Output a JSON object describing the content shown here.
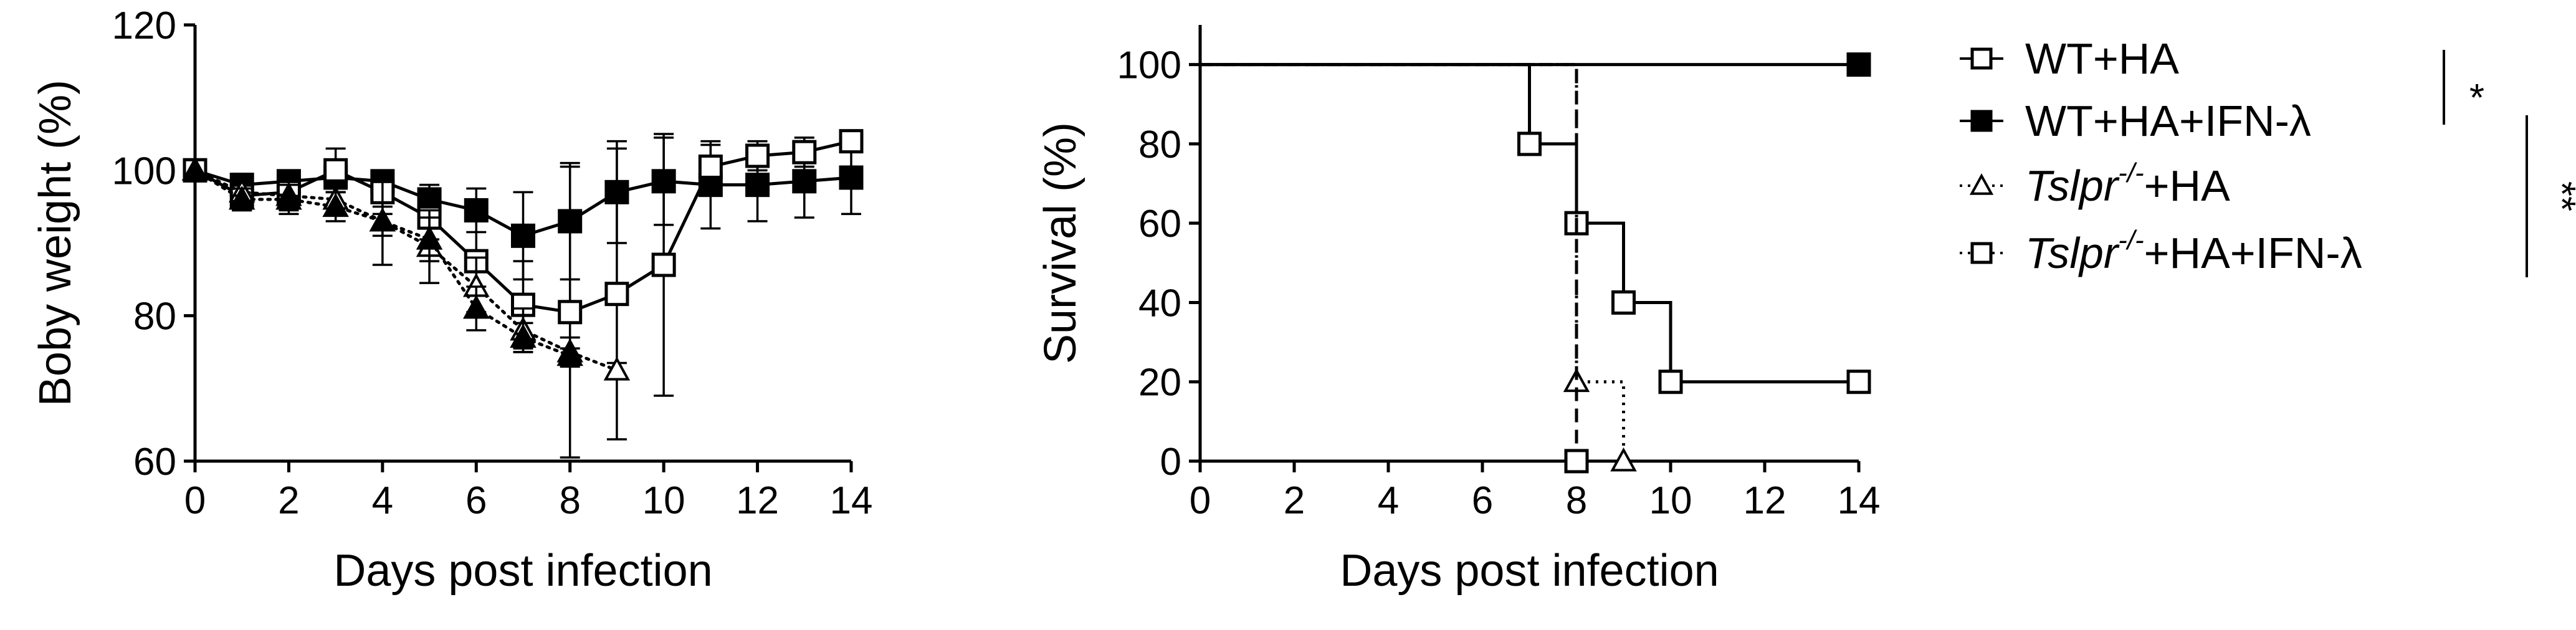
{
  "chart_data": [
    {
      "type": "line",
      "xlabel": "Days post infection",
      "ylabel": "Boby weight (%)",
      "xlim": [
        0,
        14
      ],
      "ylim": [
        60,
        120
      ],
      "xticks": [
        "0",
        "2",
        "4",
        "6",
        "8",
        "10",
        "12",
        "14"
      ],
      "yticks": [
        "60",
        "80",
        "100",
        "120"
      ],
      "grid": false,
      "error_bars": true,
      "series": [
        {
          "name": "WT+HA+IFN-λ",
          "marker": "square-filled",
          "line": "solid",
          "x": [
            0,
            1,
            2,
            3,
            4,
            5,
            6,
            7,
            8,
            9,
            10,
            11,
            12,
            13,
            14
          ],
          "y": [
            100,
            98,
            98.5,
            99,
            98.5,
            96,
            94.5,
            91,
            93,
            97,
            98.5,
            98,
            98,
            98.5,
            99
          ],
          "err": [
            0,
            1.5,
            1.5,
            2,
            1.5,
            2,
            3,
            6,
            8,
            7,
            6,
            6,
            5,
            5,
            5
          ]
        },
        {
          "name": "WT+HA",
          "marker": "square-open",
          "line": "solid",
          "x": [
            0,
            1,
            2,
            3,
            4,
            5,
            6,
            7,
            8,
            9,
            10,
            11,
            12,
            13,
            14
          ],
          "y": [
            100,
            96.5,
            97,
            100,
            97,
            93.5,
            87.5,
            81.5,
            80.5,
            83,
            87,
            100.5,
            102,
            102.5,
            104
          ],
          "err": [
            0,
            2,
            2,
            3,
            3,
            3,
            7,
            6,
            20,
            20,
            18,
            3,
            2,
            2,
            1
          ]
        },
        {
          "name": "Tslpr-/-+HA",
          "marker": "triangle-open",
          "line": "dotted",
          "x": [
            0,
            1,
            2,
            3,
            4,
            5,
            6,
            7,
            8,
            9
          ],
          "y": [
            100,
            97,
            96.5,
            96,
            93,
            89.5,
            84,
            78,
            75,
            72.5
          ],
          "err": [
            0,
            1.5,
            2,
            2,
            6,
            5,
            4,
            3,
            2,
            1
          ]
        },
        {
          "name": "Tslpr-/-+HA+IFN-λ",
          "marker": "triangle-filled",
          "line": "dotted",
          "x": [
            0,
            1,
            2,
            3,
            4,
            5,
            6,
            7,
            8
          ],
          "y": [
            100,
            96,
            96,
            95,
            93,
            90.5,
            81,
            77,
            74.5
          ],
          "err": [
            0,
            1.5,
            2,
            2,
            2,
            3,
            3,
            2,
            1
          ]
        }
      ]
    },
    {
      "type": "line",
      "step": true,
      "xlabel": "Days post infection",
      "ylabel": "Survival (%)",
      "xlim": [
        0,
        14
      ],
      "ylim": [
        0,
        110
      ],
      "xticks": [
        "0",
        "2",
        "4",
        "6",
        "8",
        "10",
        "12",
        "14"
      ],
      "yticks": [
        "0",
        "20",
        "40",
        "60",
        "80",
        "100"
      ],
      "grid": false,
      "series": [
        {
          "name": "WT+HA+IFN-λ",
          "marker": "square-filled",
          "line": "solid",
          "x": [
            0,
            14
          ],
          "y": [
            100,
            100
          ],
          "marker_points": [
            [
              14,
              100
            ]
          ]
        },
        {
          "name": "WT+HA",
          "marker": "square-open",
          "line": "solid",
          "x": [
            0,
            7,
            8,
            9,
            10,
            14
          ],
          "y": [
            100,
            80,
            60,
            40,
            20,
            20
          ],
          "marker_points": [
            [
              7,
              80
            ],
            [
              8,
              60
            ],
            [
              9,
              40
            ],
            [
              10,
              20
            ],
            [
              14,
              20
            ]
          ]
        },
        {
          "name": "Tslpr-/-+HA",
          "marker": "triangle-open",
          "line": "dotted",
          "x": [
            0,
            8,
            9
          ],
          "y": [
            100,
            20,
            0
          ],
          "marker_points": [
            [
              8,
              20
            ],
            [
              9,
              0
            ]
          ]
        },
        {
          "name": "Tslpr-/-+HA+IFN-λ",
          "marker": "square-open",
          "line": "dashed",
          "x": [
            0,
            8
          ],
          "y": [
            100,
            0
          ],
          "marker_points": [
            [
              8,
              0
            ]
          ]
        }
      ]
    }
  ],
  "legend": {
    "placement": "right",
    "entries": [
      {
        "marker": "square-open",
        "line": "solid",
        "pre": "WT+HA",
        "sup": "",
        "post": ""
      },
      {
        "marker": "square-filled",
        "line": "solid",
        "pre": "WT+HA+IFN-λ",
        "sup": "",
        "post": ""
      },
      {
        "marker": "triangle-open",
        "line": "dotted",
        "pre": "Tslpr",
        "sup": "-/-",
        "post": "+HA"
      },
      {
        "marker": "square-open",
        "line": "dotted",
        "pre": "Tslpr",
        "sup": "-/-",
        "post": "+HA+IFN-λ"
      }
    ]
  },
  "significance": [
    {
      "label": "*",
      "between": [
        0,
        1
      ]
    },
    {
      "label": "**",
      "between": [
        1,
        3
      ]
    }
  ]
}
